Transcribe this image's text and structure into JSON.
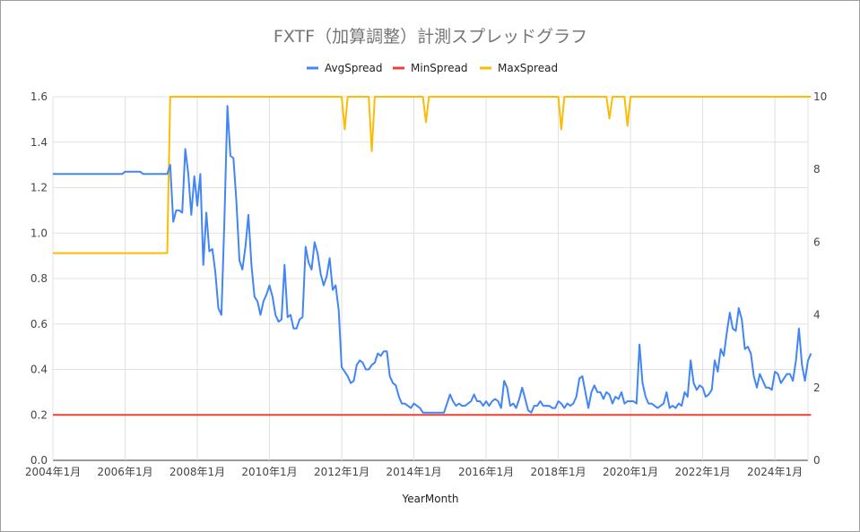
{
  "chart_data": {
    "type": "line",
    "title": "FXTF（加算調整）計測スプレッドグラフ",
    "xlabel": "YearMonth",
    "x_ticks": [
      "2004年1月",
      "2006年1月",
      "2008年1月",
      "2010年1月",
      "2012年1月",
      "2014年1月",
      "2016年1月",
      "2018年1月",
      "2020年1月",
      "2022年1月",
      "2024年1月"
    ],
    "x_range": [
      "2004-01",
      "2024-12"
    ],
    "y_left": {
      "range": [
        0,
        1.6
      ],
      "ticks": [
        "0.0",
        "0.2",
        "0.4",
        "0.6",
        "0.8",
        "1.0",
        "1.2",
        "1.4",
        "1.6"
      ]
    },
    "y_right": {
      "range": [
        0,
        10
      ],
      "ticks": [
        "0",
        "2",
        "4",
        "6",
        "8",
        "10"
      ]
    },
    "grid": true,
    "legend_position": "top",
    "colors": {
      "AvgSpread": "#4285f4",
      "MinSpread": "#ea4335",
      "MaxSpread": "#fbbc04"
    },
    "series": [
      {
        "name": "AvgSpread",
        "axis": "left",
        "points": [
          [
            "2004-01",
            1.26
          ],
          [
            "2005-12",
            1.26
          ],
          [
            "2006-01",
            1.27
          ],
          [
            "2006-06",
            1.27
          ],
          [
            "2006-07",
            1.26
          ],
          [
            "2007-03",
            1.26
          ],
          [
            "2007-04",
            1.3
          ],
          [
            "2007-05",
            1.05
          ],
          [
            "2007-06",
            1.1
          ],
          [
            "2007-07",
            1.1
          ],
          [
            "2007-08",
            1.09
          ],
          [
            "2007-09",
            1.37
          ],
          [
            "2007-10",
            1.26
          ],
          [
            "2007-11",
            1.08
          ],
          [
            "2007-12",
            1.25
          ],
          [
            "2008-01",
            1.12
          ],
          [
            "2008-02",
            1.26
          ],
          [
            "2008-03",
            0.86
          ],
          [
            "2008-04",
            1.09
          ],
          [
            "2008-05",
            0.92
          ],
          [
            "2008-06",
            0.93
          ],
          [
            "2008-07",
            0.83
          ],
          [
            "2008-08",
            0.67
          ],
          [
            "2008-09",
            0.64
          ],
          [
            "2008-10",
            1.05
          ],
          [
            "2008-11",
            1.56
          ],
          [
            "2008-12",
            1.34
          ],
          [
            "2009-01",
            1.33
          ],
          [
            "2009-02",
            1.14
          ],
          [
            "2009-03",
            0.88
          ],
          [
            "2009-04",
            0.84
          ],
          [
            "2009-05",
            0.94
          ],
          [
            "2009-06",
            1.08
          ],
          [
            "2009-07",
            0.86
          ],
          [
            "2009-08",
            0.72
          ],
          [
            "2009-09",
            0.7
          ],
          [
            "2009-10",
            0.64
          ],
          [
            "2009-11",
            0.7
          ],
          [
            "2009-12",
            0.73
          ],
          [
            "2010-01",
            0.77
          ],
          [
            "2010-02",
            0.72
          ],
          [
            "2010-03",
            0.64
          ],
          [
            "2010-04",
            0.61
          ],
          [
            "2010-05",
            0.62
          ],
          [
            "2010-06",
            0.86
          ],
          [
            "2010-07",
            0.63
          ],
          [
            "2010-08",
            0.64
          ],
          [
            "2010-09",
            0.58
          ],
          [
            "2010-10",
            0.58
          ],
          [
            "2010-11",
            0.62
          ],
          [
            "2010-12",
            0.63
          ],
          [
            "2011-01",
            0.94
          ],
          [
            "2011-02",
            0.87
          ],
          [
            "2011-03",
            0.84
          ],
          [
            "2011-04",
            0.96
          ],
          [
            "2011-05",
            0.91
          ],
          [
            "2011-06",
            0.82
          ],
          [
            "2011-07",
            0.77
          ],
          [
            "2011-08",
            0.81
          ],
          [
            "2011-09",
            0.89
          ],
          [
            "2011-10",
            0.75
          ],
          [
            "2011-11",
            0.77
          ],
          [
            "2011-12",
            0.66
          ],
          [
            "2012-01",
            0.41
          ],
          [
            "2012-02",
            0.39
          ],
          [
            "2012-03",
            0.37
          ],
          [
            "2012-04",
            0.34
          ],
          [
            "2012-05",
            0.35
          ],
          [
            "2012-06",
            0.42
          ],
          [
            "2012-07",
            0.44
          ],
          [
            "2012-08",
            0.43
          ],
          [
            "2012-09",
            0.4
          ],
          [
            "2012-10",
            0.4
          ],
          [
            "2012-11",
            0.42
          ],
          [
            "2012-12",
            0.43
          ],
          [
            "2013-01",
            0.47
          ],
          [
            "2013-02",
            0.46
          ],
          [
            "2013-03",
            0.48
          ],
          [
            "2013-04",
            0.48
          ],
          [
            "2013-05",
            0.37
          ],
          [
            "2013-06",
            0.34
          ],
          [
            "2013-07",
            0.33
          ],
          [
            "2013-08",
            0.28
          ],
          [
            "2013-09",
            0.25
          ],
          [
            "2013-10",
            0.25
          ],
          [
            "2013-11",
            0.24
          ],
          [
            "2013-12",
            0.23
          ],
          [
            "2014-01",
            0.25
          ],
          [
            "2014-02",
            0.24
          ],
          [
            "2014-03",
            0.23
          ],
          [
            "2014-04",
            0.21
          ],
          [
            "2014-05",
            0.21
          ],
          [
            "2014-06",
            0.21
          ],
          [
            "2014-07",
            0.21
          ],
          [
            "2014-08",
            0.21
          ],
          [
            "2014-09",
            0.21
          ],
          [
            "2014-10",
            0.21
          ],
          [
            "2014-11",
            0.21
          ],
          [
            "2014-12",
            0.25
          ],
          [
            "2015-01",
            0.29
          ],
          [
            "2015-02",
            0.26
          ],
          [
            "2015-03",
            0.24
          ],
          [
            "2015-04",
            0.25
          ],
          [
            "2015-05",
            0.24
          ],
          [
            "2015-06",
            0.24
          ],
          [
            "2015-07",
            0.25
          ],
          [
            "2015-08",
            0.26
          ],
          [
            "2015-09",
            0.29
          ],
          [
            "2015-10",
            0.26
          ],
          [
            "2015-11",
            0.26
          ],
          [
            "2015-12",
            0.24
          ],
          [
            "2016-01",
            0.26
          ],
          [
            "2016-02",
            0.24
          ],
          [
            "2016-03",
            0.26
          ],
          [
            "2016-04",
            0.27
          ],
          [
            "2016-05",
            0.26
          ],
          [
            "2016-06",
            0.23
          ],
          [
            "2016-07",
            0.35
          ],
          [
            "2016-08",
            0.32
          ],
          [
            "2016-09",
            0.24
          ],
          [
            "2016-10",
            0.25
          ],
          [
            "2016-11",
            0.23
          ],
          [
            "2016-12",
            0.27
          ],
          [
            "2017-01",
            0.32
          ],
          [
            "2017-02",
            0.27
          ],
          [
            "2017-03",
            0.22
          ],
          [
            "2017-04",
            0.21
          ],
          [
            "2017-05",
            0.24
          ],
          [
            "2017-06",
            0.24
          ],
          [
            "2017-07",
            0.26
          ],
          [
            "2017-08",
            0.24
          ],
          [
            "2017-09",
            0.24
          ],
          [
            "2017-10",
            0.24
          ],
          [
            "2017-11",
            0.23
          ],
          [
            "2017-12",
            0.23
          ],
          [
            "2018-01",
            0.26
          ],
          [
            "2018-02",
            0.25
          ],
          [
            "2018-03",
            0.23
          ],
          [
            "2018-04",
            0.25
          ],
          [
            "2018-05",
            0.24
          ],
          [
            "2018-06",
            0.25
          ],
          [
            "2018-07",
            0.28
          ],
          [
            "2018-08",
            0.36
          ],
          [
            "2018-09",
            0.37
          ],
          [
            "2018-10",
            0.3
          ],
          [
            "2018-11",
            0.23
          ],
          [
            "2018-12",
            0.3
          ],
          [
            "2019-01",
            0.33
          ],
          [
            "2019-02",
            0.3
          ],
          [
            "2019-03",
            0.3
          ],
          [
            "2019-04",
            0.27
          ],
          [
            "2019-05",
            0.3
          ],
          [
            "2019-06",
            0.29
          ],
          [
            "2019-07",
            0.25
          ],
          [
            "2019-08",
            0.28
          ],
          [
            "2019-09",
            0.27
          ],
          [
            "2019-10",
            0.3
          ],
          [
            "2019-11",
            0.25
          ],
          [
            "2019-12",
            0.26
          ],
          [
            "2020-01",
            0.26
          ],
          [
            "2020-02",
            0.26
          ],
          [
            "2020-03",
            0.25
          ],
          [
            "2020-04",
            0.51
          ],
          [
            "2020-05",
            0.34
          ],
          [
            "2020-06",
            0.28
          ],
          [
            "2020-07",
            0.25
          ],
          [
            "2020-08",
            0.25
          ],
          [
            "2020-09",
            0.24
          ],
          [
            "2020-10",
            0.23
          ],
          [
            "2020-11",
            0.24
          ],
          [
            "2020-12",
            0.25
          ],
          [
            "2021-01",
            0.3
          ],
          [
            "2021-02",
            0.23
          ],
          [
            "2021-03",
            0.24
          ],
          [
            "2021-04",
            0.23
          ],
          [
            "2021-05",
            0.25
          ],
          [
            "2021-06",
            0.24
          ],
          [
            "2021-07",
            0.3
          ],
          [
            "2021-08",
            0.28
          ],
          [
            "2021-09",
            0.44
          ],
          [
            "2021-10",
            0.34
          ],
          [
            "2021-11",
            0.31
          ],
          [
            "2021-12",
            0.33
          ],
          [
            "2022-01",
            0.32
          ],
          [
            "2022-02",
            0.28
          ],
          [
            "2022-03",
            0.29
          ],
          [
            "2022-04",
            0.31
          ],
          [
            "2022-05",
            0.44
          ],
          [
            "2022-06",
            0.39
          ],
          [
            "2022-07",
            0.49
          ],
          [
            "2022-08",
            0.46
          ],
          [
            "2022-09",
            0.56
          ],
          [
            "2022-10",
            0.65
          ],
          [
            "2022-11",
            0.58
          ],
          [
            "2022-12",
            0.57
          ],
          [
            "2023-01",
            0.67
          ],
          [
            "2023-02",
            0.62
          ],
          [
            "2023-03",
            0.49
          ],
          [
            "2023-04",
            0.5
          ],
          [
            "2023-05",
            0.47
          ],
          [
            "2023-06",
            0.37
          ],
          [
            "2023-07",
            0.32
          ],
          [
            "2023-08",
            0.38
          ],
          [
            "2023-09",
            0.35
          ],
          [
            "2023-10",
            0.32
          ],
          [
            "2023-11",
            0.32
          ],
          [
            "2023-12",
            0.31
          ],
          [
            "2024-01",
            0.39
          ],
          [
            "2024-02",
            0.38
          ],
          [
            "2024-03",
            0.34
          ],
          [
            "2024-04",
            0.36
          ],
          [
            "2024-05",
            0.38
          ],
          [
            "2024-06",
            0.38
          ],
          [
            "2024-07",
            0.35
          ],
          [
            "2024-08",
            0.44
          ],
          [
            "2024-09",
            0.58
          ],
          [
            "2024-10",
            0.42
          ],
          [
            "2024-11",
            0.35
          ],
          [
            "2024-12",
            0.44
          ],
          [
            "2025-01",
            0.47
          ]
        ]
      },
      {
        "name": "MinSpread",
        "axis": "left",
        "points": [
          [
            "2004-01",
            0.2
          ],
          [
            "2025-01",
            0.2
          ]
        ]
      },
      {
        "name": "MaxSpread",
        "axis": "right",
        "points": [
          [
            "2004-01",
            5.7
          ],
          [
            "2007-03",
            5.7
          ],
          [
            "2007-04",
            10
          ],
          [
            "2012-01",
            10
          ],
          [
            "2012-02",
            9.1
          ],
          [
            "2012-03",
            10
          ],
          [
            "2012-10",
            10
          ],
          [
            "2012-11",
            8.5
          ],
          [
            "2012-12",
            10
          ],
          [
            "2014-04",
            10
          ],
          [
            "2014-05",
            9.3
          ],
          [
            "2014-06",
            10
          ],
          [
            "2018-01",
            10
          ],
          [
            "2018-02",
            9.1
          ],
          [
            "2018-03",
            10
          ],
          [
            "2019-05",
            10
          ],
          [
            "2019-06",
            9.4
          ],
          [
            "2019-07",
            10
          ],
          [
            "2019-11",
            10
          ],
          [
            "2019-12",
            9.2
          ],
          [
            "2020-01",
            10
          ],
          [
            "2025-01",
            10
          ]
        ]
      }
    ]
  }
}
